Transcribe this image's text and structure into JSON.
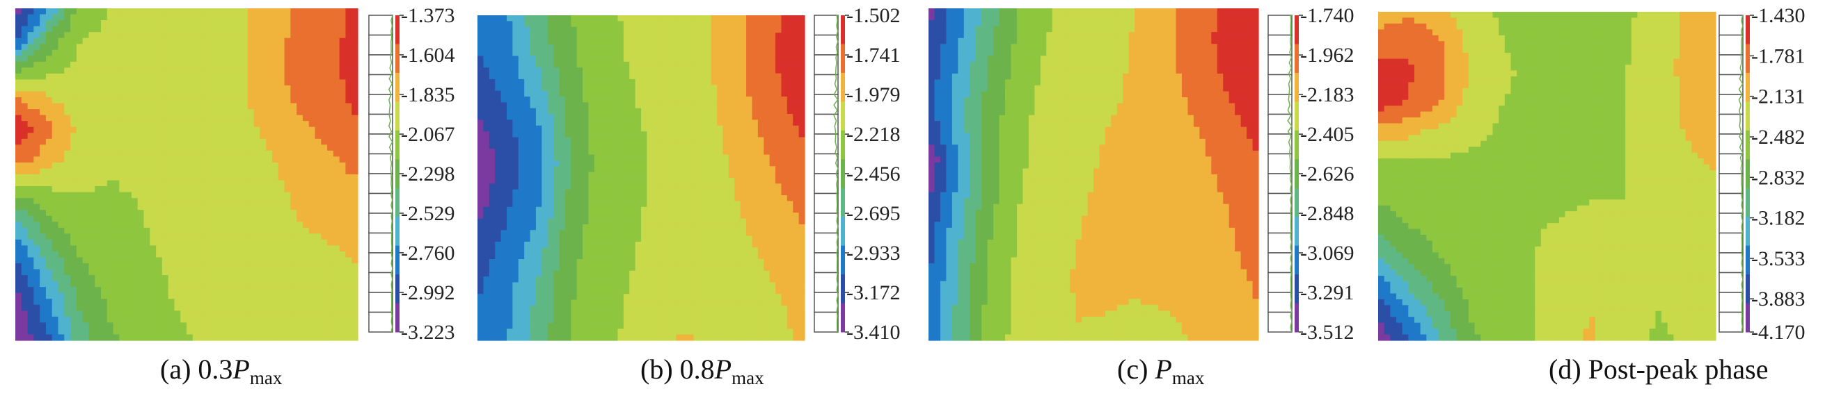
{
  "chart_data": [
    {
      "type": "heatmap",
      "caption": {
        "prefix": "(a) 0.3",
        "var": "P",
        "sub": "max",
        "suffix": ""
      },
      "colorbar_ticks": [
        -1.373,
        -1.604,
        -1.835,
        -2.067,
        -2.298,
        -2.529,
        -2.76,
        -2.992,
        -3.223
      ],
      "colorbar_tick_labels": [
        "-1.373",
        "-1.604",
        "-1.835",
        "-2.067",
        "-2.298",
        "-2.529",
        "-2.760",
        "-2.992",
        "-3.223"
      ],
      "vmin": -3.223,
      "vmax": -1.373,
      "grid": [
        [
          -3.15,
          -2.8,
          -2.15,
          -2.05,
          -2.0,
          -1.98,
          -1.97,
          -1.96,
          -1.8,
          -1.7,
          -1.62,
          -1.5
        ],
        [
          -2.95,
          -2.35,
          -2.05,
          -2.02,
          -2.0,
          -1.98,
          -1.97,
          -1.96,
          -1.79,
          -1.68,
          -1.6,
          -1.48
        ],
        [
          -2.3,
          -2.1,
          -2.02,
          -2.02,
          -2.0,
          -1.99,
          -1.98,
          -1.96,
          -1.78,
          -1.67,
          -1.59,
          -1.47
        ],
        [
          -1.7,
          -1.85,
          -1.98,
          -2.03,
          -2.02,
          -2.0,
          -1.99,
          -1.96,
          -1.8,
          -1.69,
          -1.62,
          -1.5
        ],
        [
          -1.4,
          -1.65,
          -1.9,
          -2.02,
          -2.03,
          -2.02,
          -1.99,
          -1.95,
          -1.86,
          -1.75,
          -1.67,
          -1.55
        ],
        [
          -1.6,
          -1.8,
          -1.96,
          -2.04,
          -2.04,
          -2.02,
          -1.99,
          -1.95,
          -1.9,
          -1.82,
          -1.74,
          -1.65
        ],
        [
          -2.15,
          -2.05,
          -2.04,
          -2.05,
          -2.04,
          -2.02,
          -1.99,
          -1.96,
          -1.92,
          -1.86,
          -1.8,
          -1.74
        ],
        [
          -2.55,
          -2.25,
          -2.1,
          -2.07,
          -2.05,
          -2.02,
          -2.0,
          -1.98,
          -1.94,
          -1.88,
          -1.84,
          -1.8
        ],
        [
          -2.85,
          -2.45,
          -2.2,
          -2.1,
          -2.06,
          -2.03,
          -2.0,
          -1.99,
          -1.96,
          -1.92,
          -1.89,
          -1.86
        ],
        [
          -3.05,
          -2.65,
          -2.3,
          -2.15,
          -2.08,
          -2.04,
          -2.02,
          -2.0,
          -1.98,
          -1.96,
          -1.93,
          -1.9
        ],
        [
          -3.15,
          -2.8,
          -2.4,
          -2.2,
          -2.1,
          -2.05,
          -2.03,
          -2.02,
          -2.0,
          -1.98,
          -1.96,
          -1.94
        ],
        [
          -3.2,
          -2.95,
          -2.5,
          -2.25,
          -2.12,
          -2.06,
          -2.04,
          -2.03,
          -2.02,
          -2.0,
          -1.98,
          -1.96
        ]
      ]
    },
    {
      "type": "heatmap",
      "caption": {
        "prefix": "(b) 0.8",
        "var": "P",
        "sub": "max",
        "suffix": ""
      },
      "colorbar_ticks": [
        -1.502,
        -1.741,
        -1.979,
        -2.218,
        -2.456,
        -2.695,
        -2.933,
        -3.172,
        -3.41
      ],
      "colorbar_tick_labels": [
        "-1.502",
        "-1.741",
        "-1.979",
        "-2.218",
        "-2.456",
        "-2.695",
        "-2.933",
        "-3.172",
        "-3.410"
      ],
      "vmin": -3.41,
      "vmax": -1.502,
      "grid": [
        [
          -3.0,
          -2.9,
          -2.6,
          -2.4,
          -2.25,
          -2.18,
          -2.15,
          -2.1,
          -2.0,
          -1.85,
          -1.7,
          -1.58
        ],
        [
          -3.05,
          -2.95,
          -2.65,
          -2.42,
          -2.26,
          -2.19,
          -2.16,
          -2.11,
          -2.0,
          -1.84,
          -1.68,
          -1.56
        ],
        [
          -3.1,
          -3.0,
          -2.75,
          -2.45,
          -2.28,
          -2.2,
          -2.17,
          -2.12,
          -2.01,
          -1.85,
          -1.69,
          -1.57
        ],
        [
          -3.2,
          -3.05,
          -2.85,
          -2.5,
          -2.3,
          -2.21,
          -2.17,
          -2.13,
          -2.03,
          -1.88,
          -1.72,
          -1.6
        ],
        [
          -3.3,
          -3.1,
          -2.95,
          -2.55,
          -2.32,
          -2.22,
          -2.18,
          -2.14,
          -2.05,
          -1.92,
          -1.78,
          -1.66
        ],
        [
          -3.4,
          -3.12,
          -2.98,
          -2.58,
          -2.33,
          -2.23,
          -2.18,
          -2.15,
          -2.07,
          -1.96,
          -1.83,
          -1.72
        ],
        [
          -3.35,
          -3.1,
          -2.95,
          -2.55,
          -2.32,
          -2.23,
          -2.18,
          -2.15,
          -2.08,
          -1.99,
          -1.88,
          -1.78
        ],
        [
          -3.25,
          -3.05,
          -2.88,
          -2.5,
          -2.3,
          -2.22,
          -2.17,
          -2.15,
          -2.09,
          -2.02,
          -1.93,
          -1.84
        ],
        [
          -3.15,
          -3.0,
          -2.8,
          -2.45,
          -2.28,
          -2.21,
          -2.17,
          -2.15,
          -2.1,
          -2.05,
          -1.98,
          -1.9
        ],
        [
          -3.1,
          -2.95,
          -2.72,
          -2.42,
          -2.26,
          -2.2,
          -2.16,
          -2.14,
          -2.11,
          -2.07,
          -2.02,
          -1.96
        ],
        [
          -3.05,
          -2.92,
          -2.68,
          -2.4,
          -2.25,
          -2.19,
          -2.1,
          -2.08,
          -2.1,
          -2.08,
          -2.04,
          -1.99
        ],
        [
          -3.05,
          -2.9,
          -2.65,
          -2.38,
          -2.24,
          -2.18,
          -2.05,
          -2.0,
          -2.06,
          -2.07,
          -2.05,
          -2.01
        ]
      ]
    },
    {
      "type": "heatmap",
      "caption": {
        "prefix": "(c) ",
        "var": "P",
        "sub": "max",
        "suffix": ""
      },
      "colorbar_ticks": [
        -1.74,
        -1.962,
        -2.183,
        -2.405,
        -2.626,
        -2.848,
        -3.069,
        -3.291,
        -3.512
      ],
      "colorbar_tick_labels": [
        "-1.740",
        "-1.962",
        "-2.183",
        "-2.405",
        "-2.626",
        "-2.848",
        "-3.069",
        "-3.291",
        "-3.512"
      ],
      "vmin": -3.512,
      "vmax": -1.74,
      "grid": [
        [
          -3.4,
          -3.1,
          -2.8,
          -2.55,
          -2.4,
          -2.33,
          -2.3,
          -2.22,
          -2.1,
          -1.98,
          -1.85,
          -1.75
        ],
        [
          -3.35,
          -3.05,
          -2.75,
          -2.52,
          -2.38,
          -2.31,
          -2.28,
          -2.2,
          -2.08,
          -1.96,
          -1.84,
          -1.76
        ],
        [
          -3.3,
          -3.0,
          -2.7,
          -2.48,
          -2.35,
          -2.29,
          -2.26,
          -2.2,
          -2.1,
          -1.98,
          -1.86,
          -1.78
        ],
        [
          -3.25,
          -2.95,
          -2.65,
          -2.45,
          -2.33,
          -2.27,
          -2.24,
          -2.2,
          -2.12,
          -2.02,
          -1.9,
          -1.82
        ],
        [
          -3.3,
          -2.95,
          -2.62,
          -2.42,
          -2.31,
          -2.26,
          -2.22,
          -2.19,
          -2.14,
          -2.06,
          -1.95,
          -1.86
        ],
        [
          -3.5,
          -3.0,
          -2.65,
          -2.42,
          -2.3,
          -2.25,
          -2.21,
          -2.18,
          -2.16,
          -2.1,
          -2.0,
          -1.9
        ],
        [
          -3.4,
          -2.98,
          -2.62,
          -2.4,
          -2.29,
          -2.24,
          -2.2,
          -2.17,
          -2.16,
          -2.12,
          -2.04,
          -1.93
        ],
        [
          -3.3,
          -2.92,
          -2.58,
          -2.38,
          -2.28,
          -2.23,
          -2.19,
          -2.17,
          -2.16,
          -2.13,
          -2.07,
          -1.96
        ],
        [
          -3.25,
          -2.88,
          -2.54,
          -2.36,
          -2.27,
          -2.22,
          -2.19,
          -2.17,
          -2.16,
          -2.14,
          -2.09,
          -2.0
        ],
        [
          -3.2,
          -2.85,
          -2.52,
          -2.35,
          -2.26,
          -2.21,
          -2.2,
          -2.19,
          -2.17,
          -2.15,
          -2.11,
          -2.04
        ],
        [
          -3.18,
          -2.82,
          -2.5,
          -2.34,
          -2.26,
          -2.22,
          -2.22,
          -2.24,
          -2.22,
          -2.18,
          -2.13,
          -2.07
        ],
        [
          -3.15,
          -2.8,
          -2.48,
          -2.33,
          -2.26,
          -2.23,
          -2.25,
          -2.28,
          -2.26,
          -2.21,
          -2.15,
          -2.09
        ]
      ]
    },
    {
      "type": "heatmap",
      "caption": {
        "prefix": "(d) Post-peak phase",
        "var": "",
        "sub": "",
        "suffix": ""
      },
      "colorbar_ticks": [
        -1.43,
        -1.781,
        -2.131,
        -2.482,
        -2.832,
        -3.182,
        -3.533,
        -3.883,
        -4.17
      ],
      "colorbar_tick_labels": [
        "-1.430",
        "-1.781",
        "-2.131",
        "-2.482",
        "-2.832",
        "-3.182",
        "-3.533",
        "-3.883",
        "-4.170"
      ],
      "vmin": -4.17,
      "vmax": -1.43,
      "grid": [
        [
          -2.1,
          -1.95,
          -2.1,
          -2.35,
          -2.45,
          -2.5,
          -2.55,
          -2.55,
          -2.5,
          -2.3,
          -2.15,
          -2.1
        ],
        [
          -1.8,
          -1.75,
          -1.9,
          -2.25,
          -2.42,
          -2.48,
          -2.52,
          -2.52,
          -2.47,
          -2.28,
          -2.14,
          -2.1
        ],
        [
          -1.55,
          -1.65,
          -1.85,
          -2.2,
          -2.4,
          -2.46,
          -2.49,
          -2.49,
          -2.45,
          -2.27,
          -2.14,
          -2.1
        ],
        [
          -1.55,
          -1.7,
          -1.9,
          -2.25,
          -2.42,
          -2.46,
          -2.48,
          -2.48,
          -2.44,
          -2.28,
          -2.15,
          -2.11
        ],
        [
          -2.0,
          -2.1,
          -2.25,
          -2.38,
          -2.45,
          -2.47,
          -2.48,
          -2.47,
          -2.44,
          -2.3,
          -2.17,
          -2.13
        ],
        [
          -2.45,
          -2.45,
          -2.45,
          -2.46,
          -2.47,
          -2.47,
          -2.47,
          -2.46,
          -2.44,
          -2.33,
          -2.2,
          -2.16
        ],
        [
          -2.6,
          -2.55,
          -2.5,
          -2.48,
          -2.47,
          -2.46,
          -2.45,
          -2.44,
          -2.43,
          -2.36,
          -2.25,
          -2.2
        ],
        [
          -2.8,
          -2.65,
          -2.55,
          -2.49,
          -2.47,
          -2.45,
          -2.42,
          -2.4,
          -2.41,
          -2.38,
          -2.3,
          -2.25
        ],
        [
          -3.1,
          -2.85,
          -2.65,
          -2.52,
          -2.47,
          -2.44,
          -2.35,
          -2.3,
          -2.38,
          -2.4,
          -2.35,
          -2.3
        ],
        [
          -3.5,
          -3.1,
          -2.8,
          -2.58,
          -2.48,
          -2.43,
          -2.28,
          -2.22,
          -2.34,
          -2.42,
          -2.38,
          -2.33
        ],
        [
          -3.85,
          -3.4,
          -3.0,
          -2.65,
          -2.5,
          -2.43,
          -2.22,
          -2.18,
          -2.3,
          -2.43,
          -2.4,
          -2.36
        ],
        [
          -4.1,
          -3.7,
          -3.2,
          -2.75,
          -2.53,
          -2.44,
          -2.2,
          -2.16,
          -2.28,
          -2.44,
          -2.42,
          -2.38
        ]
      ]
    }
  ],
  "colormap": [
    "#7b3aa0",
    "#2b4fa6",
    "#1f78c8",
    "#4fb3cf",
    "#5fb884",
    "#6db34c",
    "#8ec63f",
    "#c8d94a",
    "#f0b43c",
    "#ea7030",
    "#d9302a"
  ]
}
